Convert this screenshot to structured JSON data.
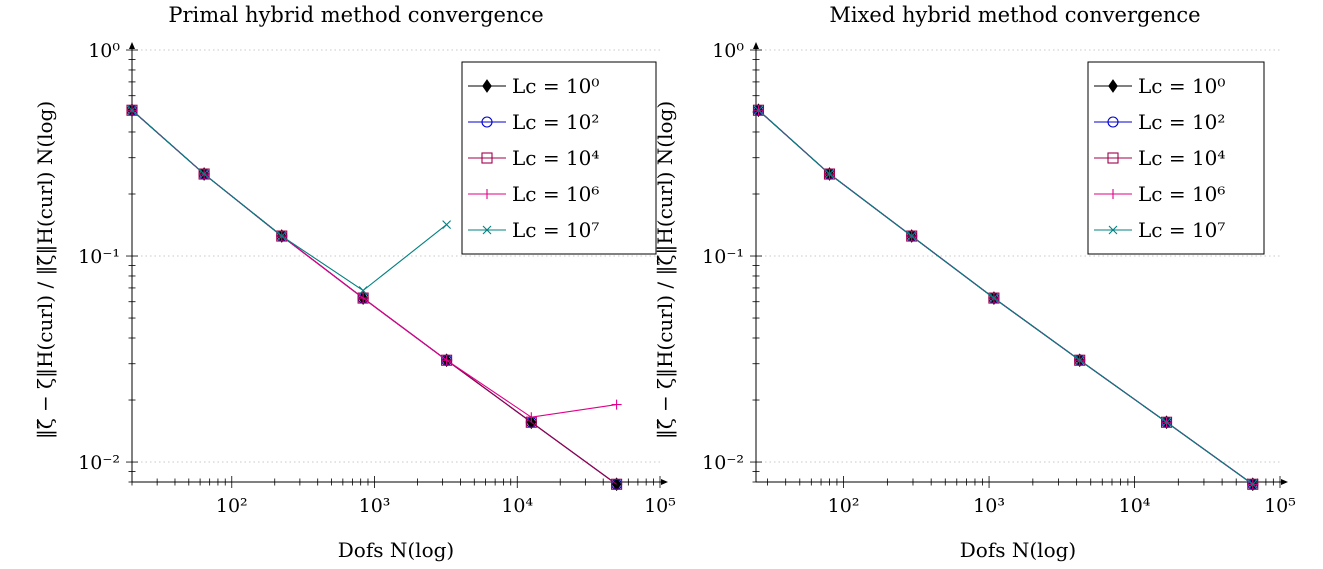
{
  "chart_data": [
    {
      "type": "line",
      "title": "Primal hybrid method convergence",
      "xlabel": "Dofs N(log)",
      "ylabel": "‖ζ̃ − ζ‖H(curl) / ‖ζ̃‖H(curl)  N(log)",
      "xscale": "log",
      "yscale": "log",
      "xlim": [
        20,
        100000
      ],
      "ylim": [
        0.008,
        1
      ],
      "grid": "horizontal dotted",
      "legend_position": "top-right",
      "xticks": [
        "10²",
        "10³",
        "10⁴",
        "10⁵"
      ],
      "yticks": [
        "10⁰",
        "10⁻¹",
        "10⁻²"
      ],
      "series": [
        {
          "name": "Lc = 10⁰",
          "color": "#000000",
          "marker": "diamond",
          "x": [
            20,
            64,
            224,
            832,
            3200,
            12544,
            49664
          ],
          "y": [
            0.51,
            0.25,
            0.125,
            0.0625,
            0.0312,
            0.0156,
            0.0078
          ]
        },
        {
          "name": "Lc = 10²",
          "color": "#0000cc",
          "marker": "circle",
          "x": [
            20,
            64,
            224,
            832,
            3200,
            12544,
            49664
          ],
          "y": [
            0.51,
            0.25,
            0.125,
            0.0625,
            0.0312,
            0.0156,
            0.0078
          ]
        },
        {
          "name": "Lc = 10⁴",
          "color": "#a0004a",
          "marker": "square",
          "x": [
            20,
            64,
            224,
            832,
            3200,
            12544,
            49664
          ],
          "y": [
            0.51,
            0.25,
            0.125,
            0.0625,
            0.0312,
            0.0156,
            0.0078
          ]
        },
        {
          "name": "Lc = 10⁶",
          "color": "#e0008a",
          "marker": "plus",
          "x": [
            20,
            64,
            224,
            832,
            3200,
            12544,
            49664
          ],
          "y": [
            0.51,
            0.25,
            0.125,
            0.0625,
            0.0312,
            0.0165,
            0.019
          ]
        },
        {
          "name": "Lc = 10⁷",
          "color": "#008080",
          "marker": "cross",
          "x": [
            20,
            64,
            224,
            832,
            3200
          ],
          "y": [
            0.51,
            0.25,
            0.125,
            0.068,
            0.142
          ]
        }
      ]
    },
    {
      "type": "line",
      "title": "Mixed hybrid method convergence",
      "xlabel": "Dofs N(log)",
      "ylabel": "‖ζ̃ − ζ‖H(curl) / ‖ζ̃‖H(curl)  N(log)",
      "xscale": "log",
      "yscale": "log",
      "xlim": [
        25,
        100000
      ],
      "ylim": [
        0.008,
        1
      ],
      "grid": "horizontal dotted",
      "legend_position": "top-right",
      "xticks": [
        "10²",
        "10³",
        "10⁴",
        "10⁵"
      ],
      "yticks": [
        "10⁰",
        "10⁻¹",
        "10⁻²"
      ],
      "series": [
        {
          "name": "Lc = 10⁰",
          "color": "#000000",
          "marker": "diamond",
          "x": [
            26,
            80,
            294,
            1080,
            4200,
            16600,
            65000
          ],
          "y": [
            0.51,
            0.25,
            0.125,
            0.0625,
            0.0312,
            0.0156,
            0.0078
          ]
        },
        {
          "name": "Lc = 10²",
          "color": "#0000cc",
          "marker": "circle",
          "x": [
            26,
            80,
            294,
            1080,
            4200,
            16600,
            65000
          ],
          "y": [
            0.51,
            0.25,
            0.125,
            0.0625,
            0.0312,
            0.0156,
            0.0078
          ]
        },
        {
          "name": "Lc = 10⁴",
          "color": "#a0004a",
          "marker": "square",
          "x": [
            26,
            80,
            294,
            1080,
            4200,
            16600,
            65000
          ],
          "y": [
            0.51,
            0.25,
            0.125,
            0.0625,
            0.0312,
            0.0156,
            0.0078
          ]
        },
        {
          "name": "Lc = 10⁶",
          "color": "#e0008a",
          "marker": "plus",
          "x": [
            26,
            80,
            294,
            1080,
            4200,
            16600,
            65000
          ],
          "y": [
            0.51,
            0.25,
            0.125,
            0.0625,
            0.0312,
            0.0156,
            0.0078
          ]
        },
        {
          "name": "Lc = 10⁷",
          "color": "#008080",
          "marker": "cross",
          "x": [
            26,
            80,
            294,
            1080,
            4200,
            16600,
            65000
          ],
          "y": [
            0.51,
            0.25,
            0.125,
            0.0625,
            0.0312,
            0.0156,
            0.0078
          ]
        }
      ]
    }
  ]
}
